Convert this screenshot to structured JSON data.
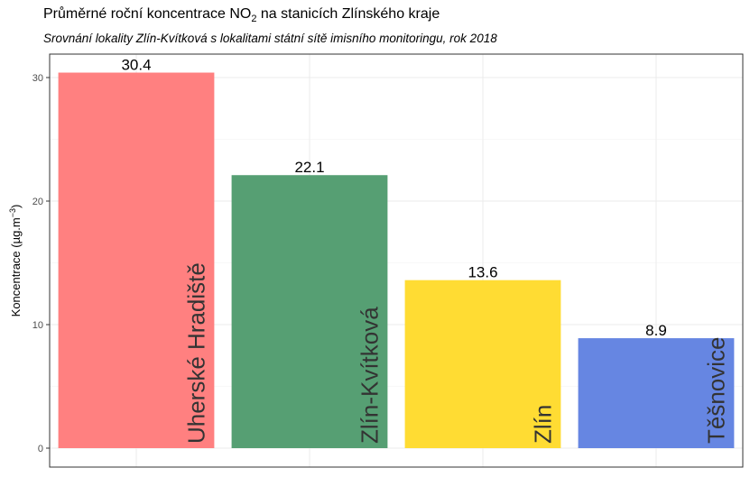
{
  "chart_data": {
    "type": "bar",
    "title_pre": "Průměrné roční koncentrace NO",
    "title_sub": "2",
    "title_post": " na stanicích Zlínského kraje",
    "subtitle": "Srovnání lokality Zlín-Kvítková s lokalitami státní sítě imisního monitoringu, rok 2018",
    "ylabel_pre": "Koncentrace (µg.m",
    "ylabel_sup": "−3",
    "ylabel_post": ")",
    "ylim": [
      0,
      31.9
    ],
    "yticks": [
      0,
      10,
      20,
      30
    ],
    "grid": true,
    "legend": "none",
    "categories": [
      "Uherské Hradiště",
      "Zlín-Kvítková",
      "Zlín",
      "Těšnovice"
    ],
    "values": [
      30.4,
      22.1,
      13.6,
      8.9
    ],
    "value_labels": [
      "30.4",
      "22.1",
      "13.6",
      "8.9"
    ],
    "colors": [
      "#ff8080",
      "#569f73",
      "#ffdc33",
      "#6686e2"
    ]
  }
}
